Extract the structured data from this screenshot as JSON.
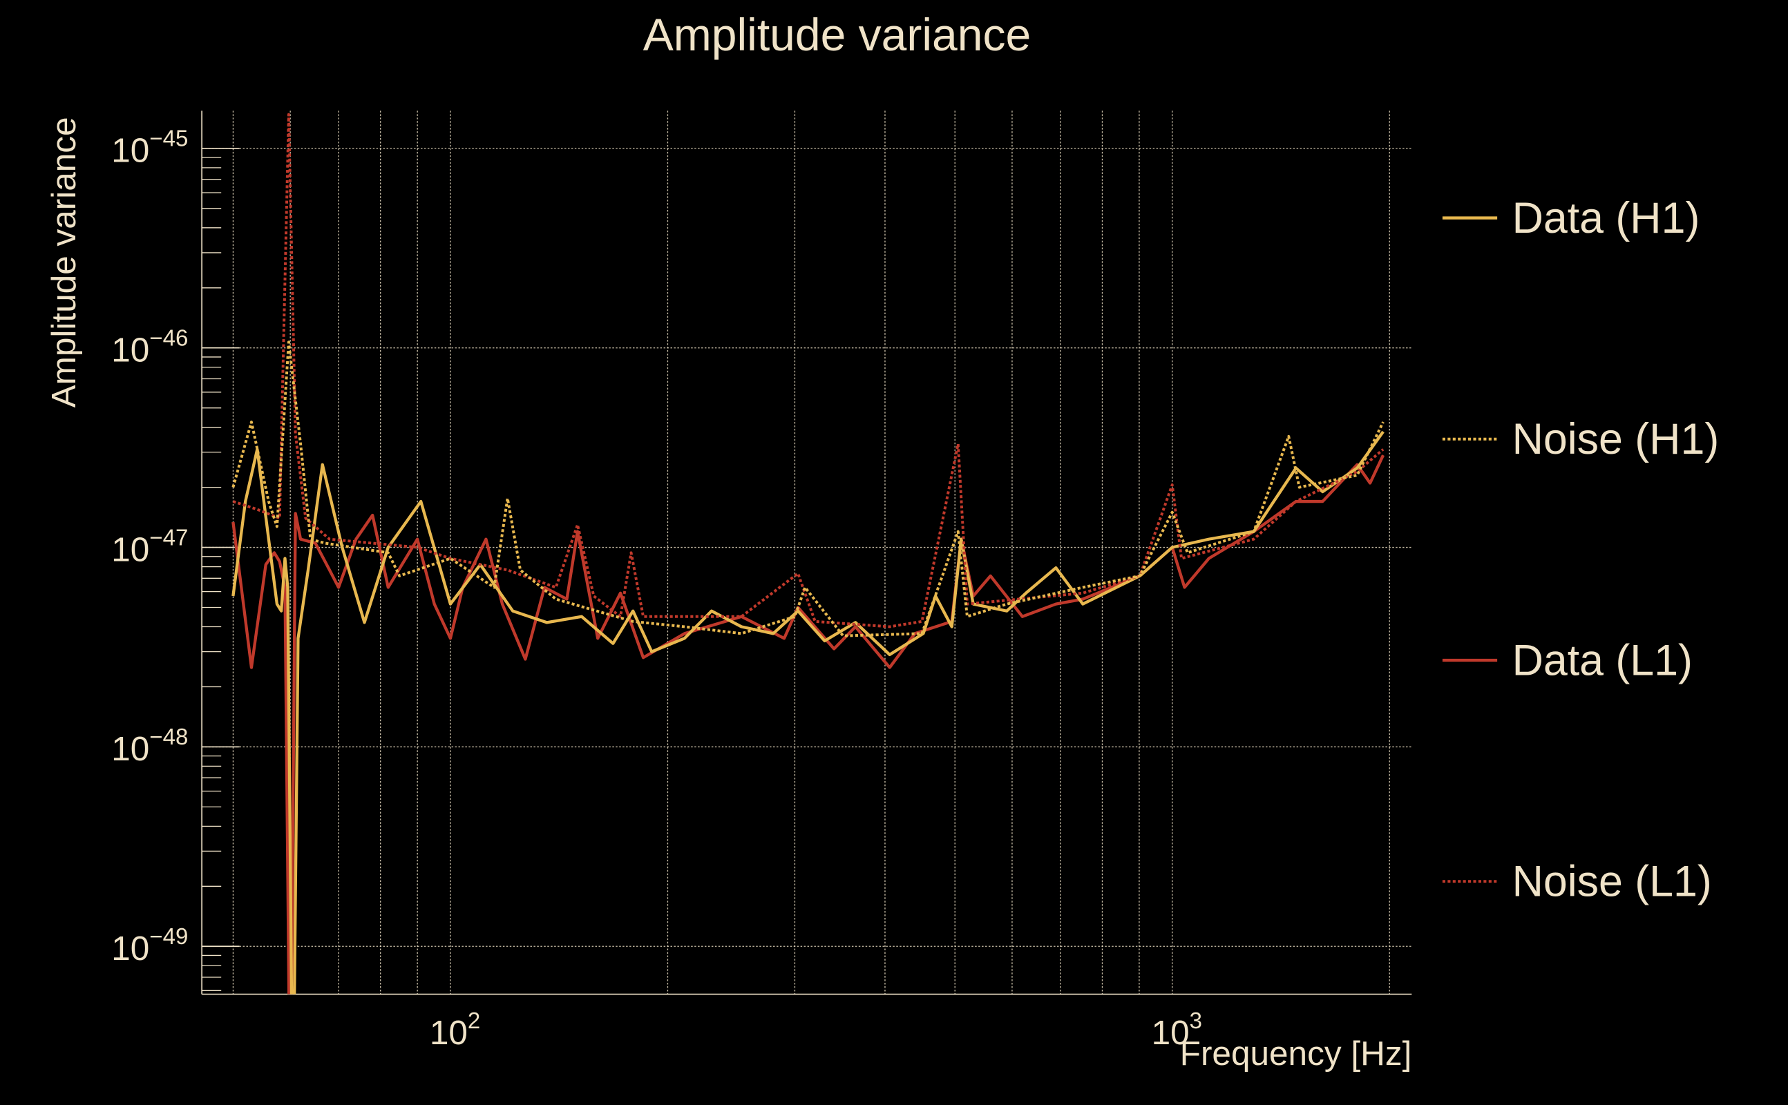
{
  "chart_data": {
    "type": "line",
    "title": "Amplitude variance",
    "xlabel": "Frequency [Hz]",
    "ylabel": "Amplitude variance",
    "xscale": "log",
    "yscale": "log",
    "xlim": [
      45.3,
      2147
    ],
    "ylim": [
      5.6e-50,
      1.55e-45
    ],
    "grid": true,
    "legend_position": "right",
    "x_ticks": [
      {
        "base": "10",
        "exp": "2",
        "value": 100
      },
      {
        "base": "10",
        "exp": "3",
        "value": 1000
      }
    ],
    "y_ticks": [
      {
        "base": "10",
        "exp": "−45",
        "value": 1e-45
      },
      {
        "base": "10",
        "exp": "−46",
        "value": 1e-46
      },
      {
        "base": "10",
        "exp": "−47",
        "value": 1e-47
      },
      {
        "base": "10",
        "exp": "−48",
        "value": 1e-48
      },
      {
        "base": "10",
        "exp": "−49",
        "value": 1e-49
      }
    ],
    "colors": {
      "background": "#000000",
      "text": "#f0e3c8",
      "grid": "#f0e3c8",
      "h1": "#e8b84f",
      "l1": "#c0392b"
    },
    "series": [
      {
        "name": "Data (H1)",
        "color": "#e8b84f",
        "style": "solid",
        "points": [
          [
            50,
            5.7e-48
          ],
          [
            52,
            1.7e-47
          ],
          [
            54,
            3.1e-47
          ],
          [
            56,
            1.1e-47
          ],
          [
            57.5,
            5.2e-48
          ],
          [
            58.3,
            4.8e-48
          ],
          [
            59,
            8.8e-48
          ],
          [
            59.5,
            6.3e-48
          ],
          [
            60.5,
            1e-50
          ],
          [
            61.5,
            3.5e-48
          ],
          [
            63.5,
            7.7e-48
          ],
          [
            66.5,
            2.6e-47
          ],
          [
            70.8,
            1e-47
          ],
          [
            76,
            4.2e-48
          ],
          [
            82,
            1e-47
          ],
          [
            91,
            1.7e-47
          ],
          [
            100,
            5.2e-48
          ],
          [
            110,
            8.2e-48
          ],
          [
            122,
            4.8e-48
          ],
          [
            136,
            4.2e-48
          ],
          [
            152,
            4.5e-48
          ],
          [
            168,
            3.3e-48
          ],
          [
            179,
            4.8e-48
          ],
          [
            190,
            3e-48
          ],
          [
            211,
            3.5e-48
          ],
          [
            230,
            4.8e-48
          ],
          [
            253,
            4e-48
          ],
          [
            280,
            3.7e-48
          ],
          [
            303,
            4.8e-48
          ],
          [
            330,
            3.4e-48
          ],
          [
            364,
            4.2e-48
          ],
          [
            406,
            2.9e-48
          ],
          [
            452,
            3.7e-48
          ],
          [
            470,
            5.7e-48
          ],
          [
            495,
            4e-48
          ],
          [
            510,
            1.1e-47
          ],
          [
            530,
            5.2e-48
          ],
          [
            590,
            4.8e-48
          ],
          [
            627,
            5.9e-48
          ],
          [
            690,
            7.9e-48
          ],
          [
            752,
            5.2e-48
          ],
          [
            902,
            7.2e-48
          ],
          [
            1000,
            1e-47
          ],
          [
            1124,
            1.1e-47
          ],
          [
            1297,
            1.2e-47
          ],
          [
            1484,
            2.5e-47
          ],
          [
            1616,
            1.9e-47
          ],
          [
            1804,
            2.5e-47
          ],
          [
            1960,
            3.8e-47
          ]
        ]
      },
      {
        "name": "Noise (H1)",
        "color": "#e8b84f",
        "style": "dotted",
        "points": [
          [
            50,
            2e-47
          ],
          [
            53,
            4.25e-47
          ],
          [
            56,
            1.7e-47
          ],
          [
            57.5,
            1.27e-47
          ],
          [
            59.7,
            1.07e-46
          ],
          [
            62,
            3.3e-47
          ],
          [
            64,
            1.1e-47
          ],
          [
            67,
            1.05e-47
          ],
          [
            82,
            9.4e-48
          ],
          [
            85,
            7.2e-48
          ],
          [
            100,
            8.8e-48
          ],
          [
            115,
            6.3e-48
          ],
          [
            120,
            1.76e-47
          ],
          [
            125,
            7.7e-48
          ],
          [
            140,
            5.5e-48
          ],
          [
            179,
            4.25e-48
          ],
          [
            211,
            4e-48
          ],
          [
            253,
            3.7e-48
          ],
          [
            300,
            4.5e-48
          ],
          [
            310,
            6.3e-48
          ],
          [
            350,
            3.6e-48
          ],
          [
            450,
            3.7e-48
          ],
          [
            505,
            1.2e-47
          ],
          [
            520,
            4.5e-48
          ],
          [
            590,
            5.2e-48
          ],
          [
            752,
            6.3e-48
          ],
          [
            902,
            7.2e-48
          ],
          [
            1000,
            1.5e-47
          ],
          [
            1050,
            9.4e-48
          ],
          [
            1297,
            1.2e-47
          ],
          [
            1450,
            3.6e-47
          ],
          [
            1500,
            2e-47
          ],
          [
            1804,
            2.3e-47
          ],
          [
            1960,
            4.25e-47
          ]
        ]
      },
      {
        "name": "Data (L1)",
        "color": "#c0392b",
        "style": "solid",
        "points": [
          [
            50,
            1.34e-47
          ],
          [
            53,
            2.5e-48
          ],
          [
            55.5,
            8.2e-48
          ],
          [
            57,
            9.4e-48
          ],
          [
            58,
            8.5e-48
          ],
          [
            59,
            6.3e-48
          ],
          [
            60,
            1e-50
          ],
          [
            61,
            1.48e-47
          ],
          [
            62,
            1.1e-47
          ],
          [
            65,
            1.05e-47
          ],
          [
            68,
            7.7e-48
          ],
          [
            70,
            6.3e-48
          ],
          [
            74,
            1.1e-47
          ],
          [
            78,
            1.45e-47
          ],
          [
            82,
            6.3e-48
          ],
          [
            90,
            1.1e-47
          ],
          [
            95,
            5.2e-48
          ],
          [
            100,
            3.5e-48
          ],
          [
            104,
            6.3e-48
          ],
          [
            112,
            1.1e-47
          ],
          [
            118,
            5.2e-48
          ],
          [
            127,
            2.75e-48
          ],
          [
            135,
            6.3e-48
          ],
          [
            145,
            5.5e-48
          ],
          [
            150,
            1.2e-47
          ],
          [
            160,
            3.5e-48
          ],
          [
            172,
            5.9e-48
          ],
          [
            185,
            2.8e-48
          ],
          [
            211,
            3.7e-48
          ],
          [
            253,
            4.5e-48
          ],
          [
            290,
            3.5e-48
          ],
          [
            303,
            5e-48
          ],
          [
            340,
            3.1e-48
          ],
          [
            364,
            4e-48
          ],
          [
            406,
            2.5e-48
          ],
          [
            440,
            3.7e-48
          ],
          [
            495,
            4.25e-48
          ],
          [
            510,
            1.1e-47
          ],
          [
            530,
            5.7e-48
          ],
          [
            560,
            7.2e-48
          ],
          [
            620,
            4.5e-48
          ],
          [
            690,
            5.2e-48
          ],
          [
            752,
            5.5e-48
          ],
          [
            902,
            7.2e-48
          ],
          [
            1000,
            1e-47
          ],
          [
            1040,
            6.3e-48
          ],
          [
            1124,
            8.8e-48
          ],
          [
            1297,
            1.2e-47
          ],
          [
            1484,
            1.7e-47
          ],
          [
            1616,
            1.7e-47
          ],
          [
            1804,
            2.6e-47
          ],
          [
            1880,
            2.1e-47
          ],
          [
            1960,
            2.9e-47
          ]
        ]
      },
      {
        "name": "Noise (L1)",
        "color": "#c0392b",
        "style": "dotted",
        "points": [
          [
            50,
            1.7e-47
          ],
          [
            54,
            1.55e-47
          ],
          [
            58,
            1.4e-47
          ],
          [
            59.7,
            1.48e-45
          ],
          [
            61,
            3.7e-47
          ],
          [
            63,
            1.4e-47
          ],
          [
            68,
            1.1e-47
          ],
          [
            90,
            1e-47
          ],
          [
            100,
            8.8e-48
          ],
          [
            120,
            7.7e-48
          ],
          [
            140,
            6.3e-48
          ],
          [
            150,
            1.3e-47
          ],
          [
            158,
            5.7e-48
          ],
          [
            172,
            4.5e-48
          ],
          [
            178,
            9.4e-48
          ],
          [
            185,
            4.5e-48
          ],
          [
            253,
            4.5e-48
          ],
          [
            303,
            7.4e-48
          ],
          [
            320,
            4.25e-48
          ],
          [
            406,
            4e-48
          ],
          [
            450,
            4.25e-48
          ],
          [
            505,
            3.3e-47
          ],
          [
            520,
            5.2e-48
          ],
          [
            752,
            5.9e-48
          ],
          [
            902,
            7.2e-48
          ],
          [
            1000,
            2.06e-47
          ],
          [
            1030,
            8.8e-48
          ],
          [
            1297,
            1.1e-47
          ],
          [
            1484,
            1.7e-47
          ],
          [
            1804,
            2.4e-47
          ],
          [
            1960,
            3.1e-47
          ]
        ]
      }
    ]
  }
}
